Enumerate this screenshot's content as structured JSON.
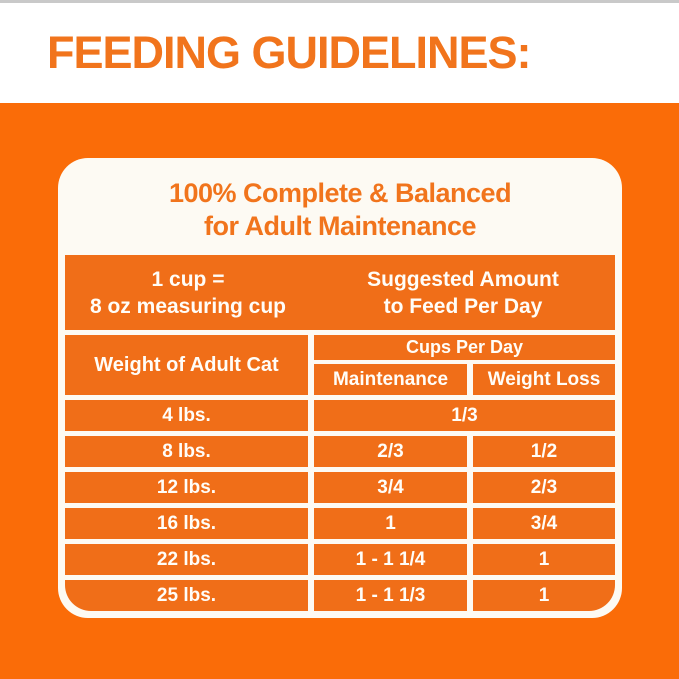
{
  "header": {
    "title": "FEEDING GUIDELINES:"
  },
  "card": {
    "title_line1": "100% Complete & Balanced",
    "title_line2": "for Adult Maintenance",
    "info": {
      "left_line1": "1 cup =",
      "left_line2": "8 oz measuring cup",
      "right_line1": "Suggested Amount",
      "right_line2": "to Feed Per Day"
    },
    "table": {
      "weight_header": "Weight of Adult Cat",
      "cups_header": "Cups Per Day",
      "col_maintenance": "Maintenance",
      "col_weight_loss": "Weight Loss",
      "rows": [
        {
          "weight": "4 lbs.",
          "maintenance": "1/3",
          "weight_loss": "",
          "merged": true
        },
        {
          "weight": "8 lbs.",
          "maintenance": "2/3",
          "weight_loss": "1/2",
          "merged": false
        },
        {
          "weight": "12 lbs.",
          "maintenance": "3/4",
          "weight_loss": "2/3",
          "merged": false
        },
        {
          "weight": "16 lbs.",
          "maintenance": "1",
          "weight_loss": "3/4",
          "merged": false
        },
        {
          "weight": "22 lbs.",
          "maintenance": "1 - 1 1/4",
          "weight_loss": "1",
          "merged": false
        },
        {
          "weight": "25 lbs.",
          "maintenance": "1 - 1 1/3",
          "weight_loss": "1",
          "merged": false
        }
      ]
    }
  },
  "colors": {
    "page_orange": "#FA6C08",
    "cell_orange": "#F06E18",
    "heading_orange": "#F1741C",
    "card_white": "#FDFAF3",
    "text_white": "#FFFDF8"
  },
  "chart_data": {
    "type": "table",
    "title": "FEEDING GUIDELINES:",
    "subtitle": "100% Complete & Balanced for Adult Maintenance",
    "note": "1 cup = 8 oz measuring cup",
    "value_header": "Suggested Amount to Feed Per Day",
    "group_header": "Cups Per Day",
    "columns": [
      "Weight of Adult Cat",
      "Maintenance",
      "Weight Loss"
    ],
    "rows": [
      [
        "4 lbs.",
        "1/3",
        "1/3 (merged)"
      ],
      [
        "8 lbs.",
        "2/3",
        "1/2"
      ],
      [
        "12 lbs.",
        "3/4",
        "2/3"
      ],
      [
        "16 lbs.",
        "1",
        "3/4"
      ],
      [
        "22 lbs.",
        "1 - 1 1/4",
        "1"
      ],
      [
        "25 lbs.",
        "1 - 1 1/3",
        "1"
      ]
    ],
    "legend_position": "none",
    "grid": "white gridlines on orange cells"
  }
}
